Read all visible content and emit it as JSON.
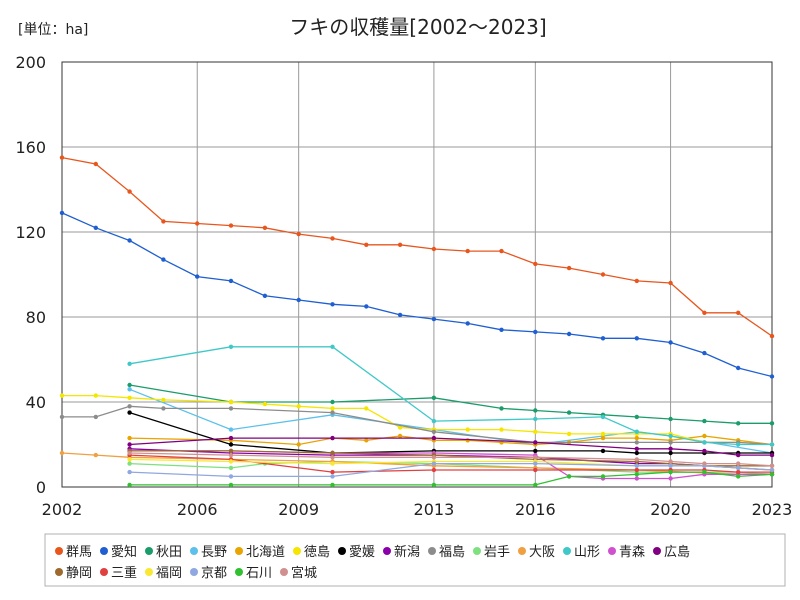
{
  "chart_data": {
    "type": "line",
    "title": "フキの収穫量[2002～2023]",
    "unit_label": "[単位：ha]",
    "xlim": [
      2002,
      2023
    ],
    "ylim": [
      0,
      200
    ],
    "x_ticks": [
      2002,
      2006,
      2009,
      2013,
      2016,
      2020,
      2023
    ],
    "y_ticks": [
      0,
      40,
      80,
      120,
      160,
      200
    ],
    "grid": true,
    "legend_position": "bottom",
    "series": [
      {
        "name": "群馬",
        "color": "#e8561e",
        "points": [
          [
            2002,
            155
          ],
          [
            2003,
            152
          ],
          [
            2004,
            139
          ],
          [
            2005,
            125
          ],
          [
            2006,
            124
          ],
          [
            2007,
            123
          ],
          [
            2008,
            122
          ],
          [
            2009,
            119
          ],
          [
            2010,
            117
          ],
          [
            2011,
            114
          ],
          [
            2012,
            114
          ],
          [
            2013,
            112
          ],
          [
            2014,
            111
          ],
          [
            2015,
            111
          ],
          [
            2016,
            105
          ],
          [
            2017,
            103
          ],
          [
            2018,
            100
          ],
          [
            2019,
            97
          ],
          [
            2020,
            96
          ],
          [
            2021,
            82
          ],
          [
            2022,
            82
          ],
          [
            2023,
            71
          ]
        ]
      },
      {
        "name": "愛知",
        "color": "#1f5fd1",
        "points": [
          [
            2002,
            129
          ],
          [
            2003,
            122
          ],
          [
            2004,
            116
          ],
          [
            2005,
            107
          ],
          [
            2006,
            99
          ],
          [
            2007,
            97
          ],
          [
            2008,
            90
          ],
          [
            2009,
            88
          ],
          [
            2010,
            86
          ],
          [
            2011,
            85
          ],
          [
            2012,
            81
          ],
          [
            2013,
            79
          ],
          [
            2014,
            77
          ],
          [
            2015,
            74
          ],
          [
            2016,
            73
          ],
          [
            2017,
            72
          ],
          [
            2018,
            70
          ],
          [
            2019,
            70
          ],
          [
            2020,
            68
          ],
          [
            2021,
            63
          ],
          [
            2022,
            56
          ],
          [
            2023,
            52
          ]
        ]
      },
      {
        "name": "秋田",
        "color": "#1a9c6b",
        "points": [
          [
            2004,
            48
          ],
          [
            2007,
            40
          ],
          [
            2010,
            40
          ],
          [
            2013,
            42
          ],
          [
            2015,
            37
          ],
          [
            2016,
            36
          ],
          [
            2017,
            35
          ],
          [
            2018,
            34
          ],
          [
            2019,
            33
          ],
          [
            2020,
            32
          ],
          [
            2021,
            31
          ],
          [
            2022,
            30
          ],
          [
            2023,
            30
          ]
        ]
      },
      {
        "name": "長野",
        "color": "#5cc0ea",
        "points": [
          [
            2004,
            46
          ],
          [
            2007,
            27
          ],
          [
            2010,
            34
          ],
          [
            2013,
            27
          ],
          [
            2016,
            20
          ],
          [
            2019,
            26
          ],
          [
            2020,
            24
          ],
          [
            2023,
            16
          ]
        ]
      },
      {
        "name": "北海道",
        "color": "#e8a400",
        "points": [
          [
            2004,
            23
          ],
          [
            2007,
            22
          ],
          [
            2009,
            20
          ],
          [
            2010,
            23
          ],
          [
            2011,
            22
          ],
          [
            2012,
            24
          ],
          [
            2013,
            22
          ],
          [
            2014,
            22
          ],
          [
            2015,
            21
          ],
          [
            2016,
            20
          ],
          [
            2017,
            21
          ],
          [
            2018,
            23
          ],
          [
            2019,
            23
          ],
          [
            2020,
            22
          ],
          [
            2021,
            24
          ],
          [
            2022,
            22
          ],
          [
            2023,
            20
          ]
        ]
      },
      {
        "name": "徳島",
        "color": "#f5e500",
        "points": [
          [
            2002,
            43
          ],
          [
            2003,
            43
          ],
          [
            2004,
            42
          ],
          [
            2005,
            41
          ],
          [
            2007,
            40
          ],
          [
            2008,
            39
          ],
          [
            2009,
            38
          ],
          [
            2010,
            37
          ],
          [
            2011,
            37
          ],
          [
            2012,
            28
          ],
          [
            2013,
            27
          ],
          [
            2014,
            27
          ],
          [
            2015,
            27
          ],
          [
            2016,
            26
          ],
          [
            2017,
            25
          ],
          [
            2018,
            25
          ],
          [
            2019,
            25
          ],
          [
            2020,
            25
          ],
          [
            2021,
            21
          ],
          [
            2022,
            21
          ],
          [
            2023,
            20
          ]
        ]
      },
      {
        "name": "愛媛",
        "color": "#000000",
        "points": [
          [
            2004,
            35
          ],
          [
            2007,
            20
          ],
          [
            2010,
            16
          ],
          [
            2013,
            17
          ],
          [
            2016,
            17
          ],
          [
            2018,
            17
          ],
          [
            2019,
            16
          ],
          [
            2020,
            16
          ],
          [
            2021,
            16
          ],
          [
            2022,
            16
          ],
          [
            2023,
            16
          ]
        ]
      },
      {
        "name": "新潟",
        "color": "#8a00a8",
        "points": [
          [
            2004,
            18
          ],
          [
            2007,
            16
          ],
          [
            2010,
            15
          ],
          [
            2013,
            15
          ],
          [
            2016,
            14
          ],
          [
            2019,
            11
          ],
          [
            2020,
            11
          ],
          [
            2021,
            10
          ],
          [
            2022,
            9
          ],
          [
            2023,
            8
          ]
        ]
      },
      {
        "name": "福島",
        "color": "#8c8c8c",
        "points": [
          [
            2002,
            33
          ],
          [
            2003,
            33
          ],
          [
            2004,
            38
          ],
          [
            2005,
            37
          ],
          [
            2007,
            37
          ],
          [
            2010,
            35
          ],
          [
            2013,
            26
          ],
          [
            2016,
            21
          ],
          [
            2019,
            21
          ],
          [
            2020,
            21
          ],
          [
            2021,
            21
          ],
          [
            2022,
            21
          ],
          [
            2023,
            20
          ]
        ]
      },
      {
        "name": "岩手",
        "color": "#7ee07e",
        "points": [
          [
            2004,
            11
          ],
          [
            2007,
            9
          ],
          [
            2008,
            11
          ],
          [
            2010,
            12
          ],
          [
            2013,
            11
          ],
          [
            2016,
            9
          ],
          [
            2019,
            7
          ],
          [
            2021,
            7
          ],
          [
            2022,
            7
          ],
          [
            2023,
            6
          ]
        ]
      },
      {
        "name": "大阪",
        "color": "#f0a040",
        "points": [
          [
            2002,
            16
          ],
          [
            2003,
            15
          ],
          [
            2004,
            14
          ],
          [
            2007,
            13
          ],
          [
            2010,
            12
          ],
          [
            2013,
            10
          ],
          [
            2016,
            9
          ],
          [
            2019,
            8
          ],
          [
            2022,
            6
          ],
          [
            2023,
            6
          ]
        ]
      },
      {
        "name": "山形",
        "color": "#40c8c8",
        "points": [
          [
            2004,
            58
          ],
          [
            2007,
            66
          ],
          [
            2010,
            66
          ],
          [
            2013,
            31
          ],
          [
            2016,
            32
          ],
          [
            2018,
            33
          ],
          [
            2019,
            26
          ],
          [
            2020,
            24
          ],
          [
            2021,
            21
          ],
          [
            2022,
            20
          ],
          [
            2023,
            20
          ]
        ]
      },
      {
        "name": "青森",
        "color": "#d050d0",
        "points": [
          [
            2004,
            17
          ],
          [
            2007,
            17
          ],
          [
            2010,
            16
          ],
          [
            2013,
            16
          ],
          [
            2016,
            15
          ],
          [
            2017,
            5
          ],
          [
            2018,
            4
          ],
          [
            2019,
            4
          ],
          [
            2020,
            4
          ],
          [
            2021,
            6
          ],
          [
            2022,
            6
          ],
          [
            2023,
            6
          ]
        ]
      },
      {
        "name": "広島",
        "color": "#800080",
        "points": [
          [
            2004,
            20
          ],
          [
            2007,
            23
          ],
          [
            2010,
            23
          ],
          [
            2013,
            23
          ],
          [
            2016,
            21
          ],
          [
            2019,
            18
          ],
          [
            2020,
            18
          ],
          [
            2021,
            17
          ],
          [
            2022,
            15
          ],
          [
            2023,
            15
          ]
        ]
      },
      {
        "name": "静岡",
        "color": "#9c6a2e",
        "points": [
          [
            2004,
            17
          ],
          [
            2007,
            17
          ],
          [
            2010,
            16
          ],
          [
            2013,
            15
          ],
          [
            2016,
            13
          ],
          [
            2019,
            12
          ],
          [
            2020,
            11
          ],
          [
            2021,
            10
          ],
          [
            2022,
            10
          ],
          [
            2023,
            10
          ]
        ]
      },
      {
        "name": "三重",
        "color": "#e04040",
        "points": [
          [
            2004,
            15
          ],
          [
            2007,
            13
          ],
          [
            2010,
            7
          ],
          [
            2013,
            8
          ],
          [
            2016,
            8
          ],
          [
            2019,
            8
          ],
          [
            2020,
            8
          ],
          [
            2021,
            8
          ],
          [
            2022,
            7
          ],
          [
            2023,
            7
          ]
        ]
      },
      {
        "name": "福岡",
        "color": "#f8e830",
        "points": [
          [
            2004,
            13
          ],
          [
            2007,
            12
          ],
          [
            2010,
            11
          ],
          [
            2013,
            12
          ],
          [
            2016,
            12
          ],
          [
            2019,
            10
          ],
          [
            2020,
            10
          ],
          [
            2021,
            10
          ],
          [
            2022,
            9
          ],
          [
            2023,
            8
          ]
        ]
      },
      {
        "name": "京都",
        "color": "#8fa8e0",
        "points": [
          [
            2004,
            7
          ],
          [
            2007,
            5
          ],
          [
            2010,
            5
          ],
          [
            2013,
            11
          ],
          [
            2016,
            11
          ],
          [
            2019,
            10
          ],
          [
            2020,
            10
          ],
          [
            2021,
            10
          ],
          [
            2022,
            9
          ],
          [
            2023,
            8
          ]
        ]
      },
      {
        "name": "石川",
        "color": "#30c030",
        "points": [
          [
            2004,
            1
          ],
          [
            2007,
            1
          ],
          [
            2010,
            1
          ],
          [
            2013,
            1
          ],
          [
            2016,
            1
          ],
          [
            2017,
            5
          ],
          [
            2018,
            5
          ],
          [
            2019,
            6
          ],
          [
            2020,
            7
          ],
          [
            2021,
            7
          ],
          [
            2022,
            5
          ],
          [
            2023,
            6
          ]
        ]
      },
      {
        "name": "宮城",
        "color": "#d09090",
        "points": [
          [
            2004,
            16
          ],
          [
            2007,
            15
          ],
          [
            2010,
            14
          ],
          [
            2013,
            14
          ],
          [
            2016,
            14
          ],
          [
            2019,
            13
          ],
          [
            2020,
            12
          ],
          [
            2021,
            11
          ],
          [
            2022,
            11
          ],
          [
            2023,
            10
          ]
        ]
      }
    ]
  }
}
